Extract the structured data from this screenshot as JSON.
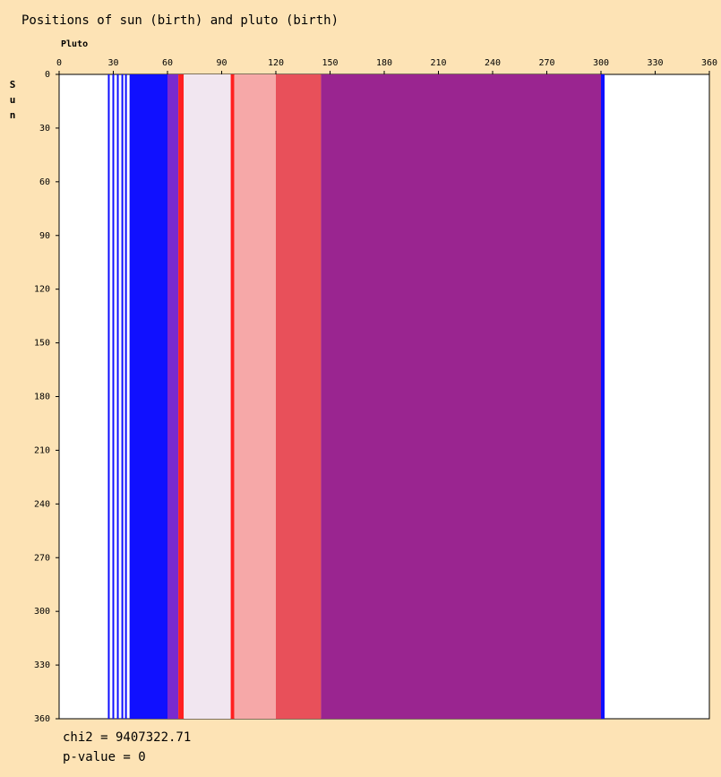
{
  "chart_data": {
    "type": "heatmap",
    "title": "Positions of sun (birth) and pluto (birth)",
    "x_label": "Pluto",
    "y_label": "Sun",
    "xlim": [
      0,
      360
    ],
    "ylim": [
      0,
      360
    ],
    "xticks": [
      0,
      30,
      60,
      90,
      120,
      150,
      180,
      210,
      240,
      270,
      300,
      330,
      360
    ],
    "yticks": [
      0,
      30,
      60,
      90,
      120,
      150,
      180,
      210,
      240,
      270,
      300,
      330,
      360
    ],
    "bands": [
      {
        "x": [
          27,
          28
        ],
        "color": "#1010ff"
      },
      {
        "x": [
          29.5,
          30.5
        ],
        "color": "#1010ff"
      },
      {
        "x": [
          32,
          33
        ],
        "color": "#1010ff"
      },
      {
        "x": [
          34.5,
          35.5
        ],
        "color": "#1010ff"
      },
      {
        "x": [
          36.5,
          37.5
        ],
        "color": "#1010ff"
      },
      {
        "x": [
          39,
          60
        ],
        "color": "#1010ff"
      },
      {
        "x": [
          60,
          66
        ],
        "color": "#7a2ad0"
      },
      {
        "x": [
          66,
          69
        ],
        "color": "#ff2020"
      },
      {
        "x": [
          69,
          95
        ],
        "color": "#f1e6f0"
      },
      {
        "x": [
          95,
          97
        ],
        "color": "#ff2020"
      },
      {
        "x": [
          97,
          120
        ],
        "color": "#f6a8a8"
      },
      {
        "x": [
          120,
          145
        ],
        "color": "#e8505a"
      },
      {
        "x": [
          145,
          300
        ],
        "color": "#9a2590"
      },
      {
        "x": [
          300,
          302
        ],
        "color": "#1010ff"
      }
    ],
    "annotations": [
      "chi2 = 9407322.71",
      "p-value = 0"
    ]
  }
}
